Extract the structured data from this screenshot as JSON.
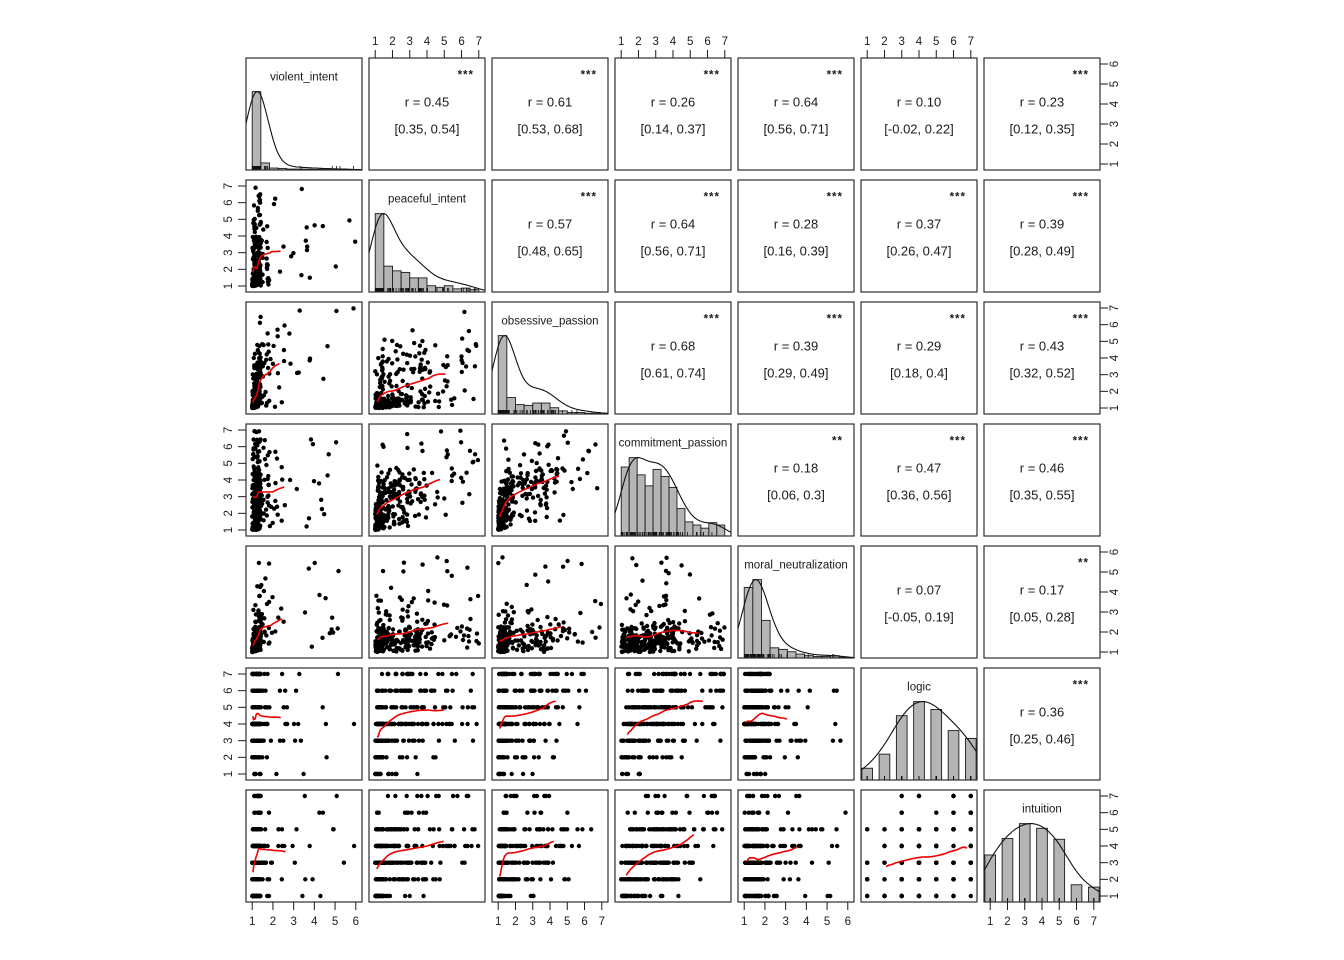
{
  "chart_data": {
    "type": "scatter",
    "subtype": "scatterplot-matrix-pairs-panels",
    "n_points": 270,
    "grid": {
      "rows": 7,
      "cols": 7
    },
    "variables": [
      {
        "name": "violent_intent",
        "range": [
          1,
          6
        ],
        "discrete": false,
        "hist": [
          1.0,
          0.09,
          0.025,
          0.02,
          0.012,
          0.012,
          0.01,
          0.008,
          0.006,
          0.005,
          0.004,
          0.004
        ]
      },
      {
        "name": "peaceful_intent",
        "range": [
          1,
          7
        ],
        "discrete": false,
        "hist": [
          1.0,
          0.33,
          0.27,
          0.25,
          0.18,
          0.18,
          0.08,
          0.06,
          0.08,
          0.04,
          0.05,
          0.03
        ]
      },
      {
        "name": "obsessive_passion",
        "range": [
          1,
          7
        ],
        "discrete": false,
        "hist": [
          1.0,
          0.21,
          0.12,
          0.11,
          0.14,
          0.14,
          0.08,
          0.04,
          0.02,
          0.02,
          0.01,
          0.01
        ]
      },
      {
        "name": "commitment_passion",
        "range": [
          1,
          7
        ],
        "discrete": false,
        "hist": [
          0.88,
          1.0,
          0.78,
          0.64,
          0.85,
          0.76,
          0.62,
          0.35,
          0.18,
          0.14,
          0.1,
          0.17,
          0.14
        ]
      },
      {
        "name": "moral_neutralization",
        "range": [
          1,
          6
        ],
        "discrete": false,
        "hist": [
          0.9,
          1.0,
          0.48,
          0.13,
          0.11,
          0.08,
          0.05,
          0.03,
          0.02,
          0.02,
          0.03,
          0.01
        ]
      },
      {
        "name": "logic",
        "range": [
          1,
          7
        ],
        "discrete": true,
        "hist": [
          0.15,
          0.33,
          0.82,
          1.0,
          0.9,
          0.63,
          0.53
        ]
      },
      {
        "name": "intuition",
        "range": [
          1,
          7
        ],
        "discrete": true,
        "hist": [
          0.6,
          0.81,
          1.0,
          0.94,
          0.8,
          0.22,
          0.19
        ]
      }
    ],
    "correlations": [
      {
        "pair": [
          0,
          1
        ],
        "r": 0.45,
        "r_text": "0.45",
        "ci_text": "[0.35, 0.54]",
        "stars": "***"
      },
      {
        "pair": [
          0,
          2
        ],
        "r": 0.61,
        "r_text": "0.61",
        "ci_text": "[0.53, 0.68]",
        "stars": "***"
      },
      {
        "pair": [
          0,
          3
        ],
        "r": 0.26,
        "r_text": "0.26",
        "ci_text": "[0.14, 0.37]",
        "stars": "***"
      },
      {
        "pair": [
          0,
          4
        ],
        "r": 0.64,
        "r_text": "0.64",
        "ci_text": "[0.56, 0.71]",
        "stars": "***"
      },
      {
        "pair": [
          0,
          5
        ],
        "r": 0.1,
        "r_text": "0.10",
        "ci_text": "[-0.02, 0.22]",
        "stars": ""
      },
      {
        "pair": [
          0,
          6
        ],
        "r": 0.23,
        "r_text": "0.23",
        "ci_text": "[0.12, 0.35]",
        "stars": "***"
      },
      {
        "pair": [
          1,
          2
        ],
        "r": 0.57,
        "r_text": "0.57",
        "ci_text": "[0.48, 0.65]",
        "stars": "***"
      },
      {
        "pair": [
          1,
          3
        ],
        "r": 0.64,
        "r_text": "0.64",
        "ci_text": "[0.56, 0.71]",
        "stars": "***"
      },
      {
        "pair": [
          1,
          4
        ],
        "r": 0.28,
        "r_text": "0.28",
        "ci_text": "[0.16, 0.39]",
        "stars": "***"
      },
      {
        "pair": [
          1,
          5
        ],
        "r": 0.37,
        "r_text": "0.37",
        "ci_text": "[0.26, 0.47]",
        "stars": "***"
      },
      {
        "pair": [
          1,
          6
        ],
        "r": 0.39,
        "r_text": "0.39",
        "ci_text": "[0.28, 0.49]",
        "stars": "***"
      },
      {
        "pair": [
          2,
          3
        ],
        "r": 0.68,
        "r_text": "0.68",
        "ci_text": "[0.61, 0.74]",
        "stars": "***"
      },
      {
        "pair": [
          2,
          4
        ],
        "r": 0.39,
        "r_text": "0.39",
        "ci_text": "[0.29, 0.49]",
        "stars": "***"
      },
      {
        "pair": [
          2,
          5
        ],
        "r": 0.29,
        "r_text": "0.29",
        "ci_text": "[0.18, 0.4]",
        "stars": "***"
      },
      {
        "pair": [
          2,
          6
        ],
        "r": 0.43,
        "r_text": "0.43",
        "ci_text": "[0.32, 0.52]",
        "stars": "***"
      },
      {
        "pair": [
          3,
          4
        ],
        "r": 0.18,
        "r_text": "0.18",
        "ci_text": "[0.06, 0.3]",
        "stars": "**"
      },
      {
        "pair": [
          3,
          5
        ],
        "r": 0.47,
        "r_text": "0.47",
        "ci_text": "[0.36, 0.56]",
        "stars": "***"
      },
      {
        "pair": [
          3,
          6
        ],
        "r": 0.46,
        "r_text": "0.46",
        "ci_text": "[0.35, 0.55]",
        "stars": "***"
      },
      {
        "pair": [
          4,
          5
        ],
        "r": 0.07,
        "r_text": "0.07",
        "ci_text": "[-0.05, 0.19]",
        "stars": ""
      },
      {
        "pair": [
          4,
          6
        ],
        "r": 0.17,
        "r_text": "0.17",
        "ci_text": "[0.05, 0.28]",
        "stars": "**"
      },
      {
        "pair": [
          5,
          6
        ],
        "r": 0.36,
        "r_text": "0.36",
        "ci_text": "[0.25, 0.46]",
        "stars": "***"
      }
    ],
    "labels": {
      "r_prefix": "r  = "
    },
    "axes": {
      "tick_values": [
        1,
        2,
        3,
        4,
        5,
        6,
        7
      ],
      "top_cols": [
        1,
        3,
        5
      ],
      "bottom_cols": [
        0,
        2,
        4,
        6
      ],
      "left_rows": [
        1,
        3,
        5
      ],
      "right_rows": [
        0,
        2,
        4,
        6
      ]
    },
    "style": {
      "star_color": "#d44a62",
      "smooth_color": "#ee0000",
      "point_color": "#000000",
      "hist_fill": "#b5b5b5",
      "hist_stroke": "#1c1c1c",
      "density_color": "#111111",
      "panel_border": "#2e2e2e",
      "text_color": "#1a1a1a",
      "background": "#ffffff"
    }
  }
}
